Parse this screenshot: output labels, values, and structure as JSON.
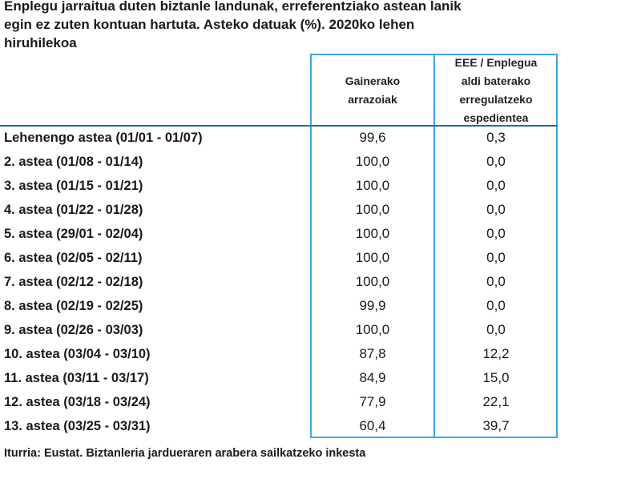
{
  "header": {
    "title_lines": [
      "Enplegu jarraitua duten biztanle landunak, erreferentziako astean lanik",
      "egin ez zuten kontuan hartuta. Asteko datuak (%). 2020ko lehen",
      "hiruhilekoa"
    ]
  },
  "table": {
    "columns": [
      "Gainerako arrazoiak",
      "EEE / Enplegua aldi baterako erregulatzeko espedientea"
    ],
    "rows": [
      [
        "Lehenengo astea (01/01 - 01/07)",
        "99,6",
        "0,3"
      ],
      [
        "2. astea (01/08 - 01/14)",
        "100,0",
        "0,0"
      ],
      [
        "3. astea (01/15 - 01/21)",
        "100,0",
        "0,0"
      ],
      [
        "4. astea (01/22 - 01/28)",
        "100,0",
        "0,0"
      ],
      [
        "5. astea (29/01 - 02/04)",
        "100,0",
        "0,0"
      ],
      [
        "6. astea (02/05 - 02/11)",
        "100,0",
        "0,0"
      ],
      [
        "7. astea (02/12 - 02/18)",
        "100,0",
        "0,0"
      ],
      [
        "8. astea (02/19 - 02/25)",
        "99,9",
        "0,0"
      ],
      [
        "9. astea (02/26 - 03/03)",
        "100,0",
        "0,0"
      ],
      [
        "10. astea (03/04 - 03/10)",
        "87,8",
        "12,2"
      ],
      [
        "11. astea (03/11 - 03/17)",
        "84,9",
        "15,0"
      ],
      [
        "12. astea (03/18 - 03/24)",
        "77,9",
        "22,1"
      ],
      [
        "13. astea (03/25 - 03/31)",
        "60,4",
        "39,7"
      ]
    ]
  },
  "footer": {
    "source": "Iturria: Eustat. Biztanleria jardueraren arabera sailkatzeko inkesta"
  }
}
